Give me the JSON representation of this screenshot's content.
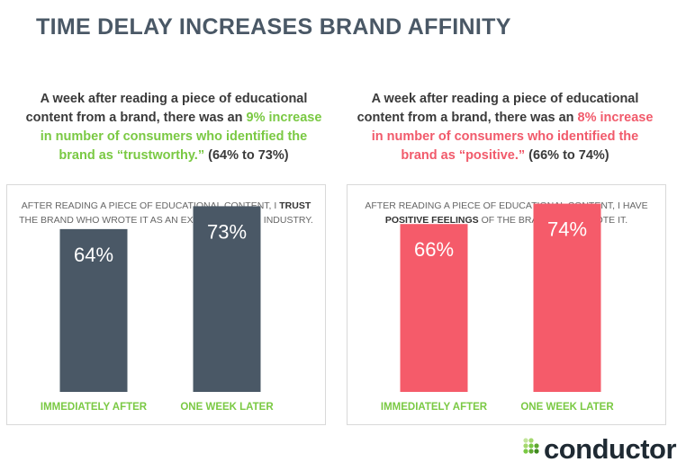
{
  "title": "TIME DELAY INCREASES BRAND AFFINITY",
  "colors": {
    "title": "#4a5866",
    "slate_bar": "#4a5866",
    "pink_bar": "#f55b6a",
    "green_label": "#7ac943",
    "red_text": "#f15a6b"
  },
  "left": {
    "intro_pre": "A week after reading a piece of educational content from a brand, there was an ",
    "intro_highlight": "9% increase in number of consumers who identified the brand as “trustworthy.”",
    "intro_post": " (64% to 73%)",
    "caption_pre": "AFTER READING A PIECE OF EDUCATIONAL CONTENT, I ",
    "caption_bold": "TRUST",
    "caption_post": " THE BRAND WHO WROTE IT AS AN EXPERT IN THEIR INDUSTRY."
  },
  "right": {
    "intro_pre": "A week after reading a piece of educational content from a brand, there was an ",
    "intro_highlight": "8% increase in number of consumers who identified the brand as “positive.”",
    "intro_post": " (66% to 74%)",
    "caption_pre": "AFTER READING A PIECE OF EDUCATIONAL CONTENT, I HAVE ",
    "caption_bold": "POSITIVE FEELINGS",
    "caption_post": " OF THE BRAND WHO WROTE IT."
  },
  "logo": {
    "text": "conductor",
    "mark": "·"
  },
  "chart_data": [
    {
      "type": "bar",
      "categories": [
        "IMMEDIATELY AFTER",
        "ONE WEEK LATER"
      ],
      "values": [
        64,
        73
      ],
      "value_labels": [
        "64%",
        "73%"
      ],
      "color": "#4a5866",
      "label_color": "#7ac943"
    },
    {
      "type": "bar",
      "categories": [
        "IMMEDIATELY AFTER",
        "ONE WEEK LATER"
      ],
      "values": [
        66,
        74
      ],
      "value_labels": [
        "66%",
        "74%"
      ],
      "color": "#f55b6a",
      "label_color": "#7ac943"
    }
  ]
}
